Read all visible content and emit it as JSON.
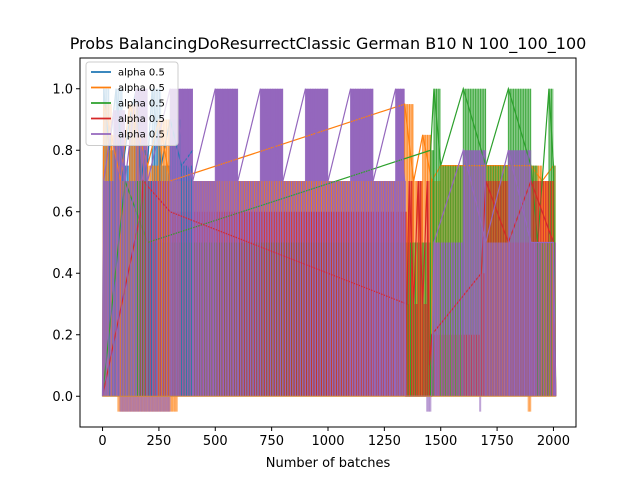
{
  "chart_data": {
    "type": "line",
    "title": "Probs BalancingDoResurrectClassic German B10 N 100_100_100",
    "xlabel": "Number of batches",
    "ylabel": "",
    "xlim": [
      -100,
      2100
    ],
    "ylim": [
      -0.1,
      1.1
    ],
    "x_ticks": [
      0,
      250,
      500,
      750,
      1000,
      1250,
      1500,
      1750,
      2000
    ],
    "x_tick_labels": [
      "0",
      "250",
      "500",
      "750",
      "1000",
      "1250",
      "1500",
      "1750",
      "2000"
    ],
    "y_ticks": [
      0.0,
      0.2,
      0.4,
      0.6,
      0.8,
      1.0
    ],
    "y_tick_labels": [
      "0.0",
      "0.2",
      "0.4",
      "0.6",
      "0.8",
      "1.0"
    ],
    "grid": false,
    "legend_position": "top-left",
    "series": [
      {
        "name": "alpha 0.5",
        "color": "#1f77b4",
        "x": [
          0,
          5,
          30,
          60,
          90,
          120,
          150,
          170,
          190,
          195,
          220,
          260,
          300,
          350,
          400
        ],
        "y": [
          0.0,
          1.0,
          0.8,
          1.0,
          0.75,
          0.9,
          1.0,
          0.7,
          0.8,
          0.7,
          1.0,
          0.75,
          0.9,
          0.75,
          0.8
        ]
      },
      {
        "name": "alpha 0.5",
        "color": "#ff7f0e",
        "x": [
          0,
          5,
          40,
          80,
          120,
          160,
          200,
          250,
          300,
          1340,
          1380,
          1420,
          1460,
          1500,
          1800,
          1900,
          1950,
          2000,
          2010
        ],
        "y": [
          0.0,
          0.95,
          0.85,
          0.7,
          0.95,
          0.85,
          0.75,
          0.9,
          0.7,
          0.95,
          0.7,
          0.85,
          0.7,
          0.75,
          0.75,
          0.75,
          0.7,
          0.75,
          0.0
        ]
      },
      {
        "name": "alpha 0.5",
        "color": "#2ca02c",
        "x": [
          0,
          100,
          200,
          1455,
          1470,
          1500,
          1600,
          1700,
          1800,
          1900,
          1930,
          1980,
          2000,
          2010
        ],
        "y": [
          0.0,
          0.7,
          0.5,
          0.8,
          1.0,
          0.75,
          1.0,
          0.75,
          1.0,
          0.75,
          0.5,
          1.0,
          0.75,
          0.0
        ]
      },
      {
        "name": "alpha 0.5",
        "color": "#d62728",
        "x": [
          0,
          170,
          180,
          300,
          1350,
          1360,
          1380,
          1400,
          1420,
          1440,
          1450,
          1460,
          1680,
          1700,
          1800,
          1900,
          2000,
          2010
        ],
        "y": [
          0.0,
          0.6,
          0.7,
          0.6,
          0.3,
          0.7,
          0.3,
          0.7,
          0.3,
          0.7,
          0.1,
          0.2,
          0.4,
          0.7,
          0.5,
          0.7,
          0.5,
          0.0
        ]
      },
      {
        "name": "alpha 0.5",
        "color": "#9467bd",
        "x": [
          0,
          5,
          50,
          100,
          150,
          200,
          300,
          400,
          500,
          600,
          700,
          800,
          900,
          1000,
          1100,
          1200,
          1300,
          1340,
          1345,
          1460,
          1470,
          1600,
          1700,
          1800,
          1900,
          2000,
          2010
        ],
        "y": [
          0.0,
          0.7,
          0.93,
          0.7,
          1.0,
          0.7,
          1.0,
          0.7,
          1.0,
          0.7,
          1.0,
          0.7,
          1.0,
          0.7,
          1.0,
          0.7,
          1.0,
          0.7,
          0.0,
          0.0,
          0.5,
          0.8,
          0.5,
          0.8,
          0.5,
          0.5,
          0.0
        ]
      }
    ],
    "spikes": [
      {
        "series": 1,
        "color": "#ff7f0e",
        "x_from": 70,
        "x_to": 330,
        "y": -0.05
      },
      {
        "series": 4,
        "color": "#9467bd",
        "x_from": 80,
        "x_to": 300,
        "y": -0.05
      },
      {
        "series": 4,
        "color": "#9467bd",
        "x_from": 1440,
        "x_to": 1460,
        "y": -0.05
      },
      {
        "series": 1,
        "color": "#ff7f0e",
        "x_from": 1890,
        "x_to": 1900,
        "y": -0.05
      },
      {
        "series": 4,
        "color": "#9467bd",
        "x_from": 1675,
        "x_to": 1680,
        "y": -0.05
      }
    ]
  }
}
